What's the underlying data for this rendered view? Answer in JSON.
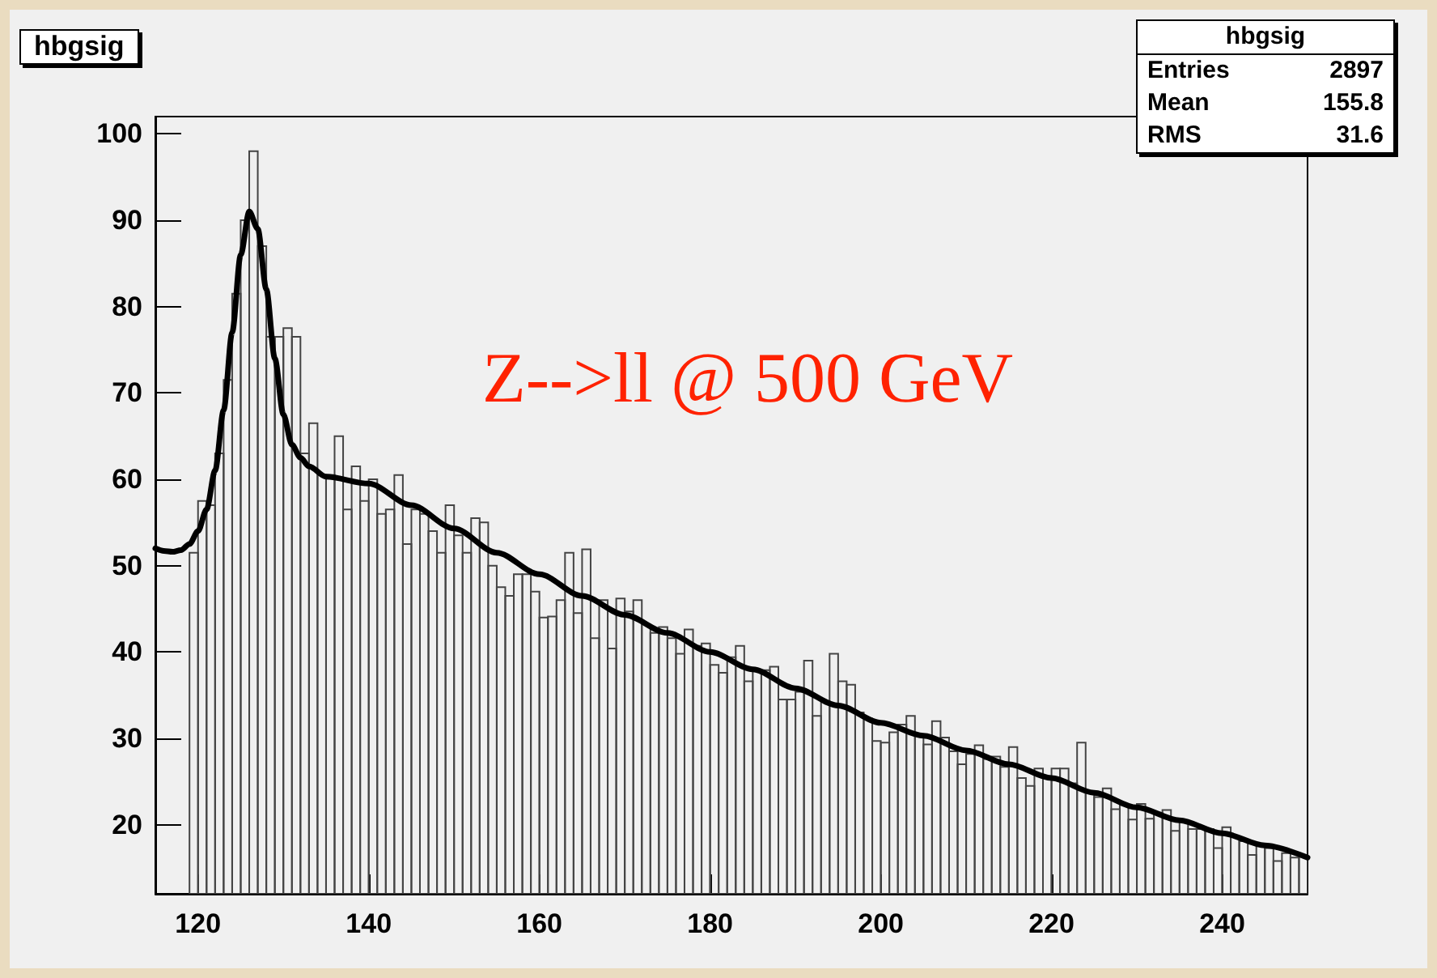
{
  "chart_data": {
    "type": "histogram",
    "title": "hbgsig",
    "bins": [
      119,
      120,
      121,
      122,
      123,
      124,
      125,
      126,
      127,
      128,
      129,
      130,
      131,
      132,
      133,
      134,
      135,
      136,
      137,
      138,
      139,
      140,
      141,
      142,
      143,
      144,
      145,
      146,
      147,
      148,
      149,
      150,
      151,
      152,
      153,
      154,
      155,
      156,
      157,
      158,
      159,
      160,
      161,
      162,
      163,
      164,
      165,
      166,
      167,
      168,
      169,
      170,
      171,
      172,
      173,
      174,
      175,
      176,
      177,
      178,
      179,
      180,
      181,
      182,
      183,
      184,
      185,
      186,
      187,
      188,
      189,
      190,
      191,
      192,
      193,
      194,
      195,
      196,
      197,
      198,
      199,
      200,
      201,
      202,
      203,
      204,
      205,
      206,
      207,
      208,
      209,
      210,
      211,
      212,
      213,
      214,
      215,
      216,
      217,
      218,
      219,
      220,
      221,
      222,
      223,
      224,
      225,
      226,
      227,
      228,
      229,
      230,
      231,
      232,
      233,
      234,
      235,
      236,
      237,
      238,
      239,
      240,
      241,
      242,
      243,
      244,
      245,
      246,
      247,
      248,
      249,
      250
    ],
    "values": [
      51.5,
      57.5,
      57,
      63,
      71.5,
      81.5,
      90,
      98,
      87,
      76.5,
      76.5,
      77.5,
      76.5,
      63,
      66.5,
      60.5,
      60.5,
      65,
      56.5,
      61.5,
      57.5,
      60,
      56,
      56.5,
      60.5,
      52.5,
      56.5,
      56,
      54,
      51.5,
      57,
      53.5,
      51.5,
      55.5,
      55,
      50,
      47.5,
      46.5,
      49,
      49,
      47,
      44,
      44.1,
      46,
      51.5,
      44.5,
      51.9,
      41.6,
      46,
      40.4,
      46.2,
      44.7,
      46,
      43.2,
      42.2,
      42.9,
      41.6,
      39.8,
      42.6,
      40.7,
      41,
      38.5,
      37.6,
      39.4,
      40.7,
      36.6,
      37.9,
      37.9,
      38.3,
      34.5,
      34.5,
      35.4,
      39,
      32.6,
      34.2,
      39.8,
      36.6,
      36.2,
      33,
      32.3,
      29.7,
      29.5,
      30.7,
      31.6,
      32.6,
      30.4,
      29.3,
      32,
      30.1,
      28.5,
      27,
      28.2,
      29.2,
      27.6,
      27.9,
      26.7,
      29,
      25.4,
      24.5,
      26.5,
      25.4,
      26.5,
      26.5,
      24.8,
      29.5,
      23.9,
      23.2,
      24.2,
      21.8,
      22.3,
      20.6,
      22.4,
      20.7,
      21.4,
      21.7,
      19.3,
      20.4,
      19.5,
      19.5,
      19.5,
      17.3,
      19.7,
      18.6,
      18.1,
      16.5,
      17.6,
      17.3,
      15.8,
      16.7,
      16.2,
      16.3
    ],
    "color": "#444444",
    "series": [
      {
        "type": "line",
        "color": "#000000",
        "x": [
          115,
          116,
          117,
          118,
          119,
          120,
          121,
          122,
          123,
          124,
          125,
          126,
          127,
          128,
          129,
          130,
          131,
          132,
          133,
          135,
          140,
          145,
          150,
          155,
          160,
          165,
          170,
          175,
          180,
          185,
          190,
          195,
          200,
          205,
          210,
          215,
          220,
          225,
          230,
          235,
          240,
          245,
          250
        ],
        "values": [
          52,
          51.7,
          51.6,
          51.8,
          52.5,
          54,
          56.5,
          61,
          68,
          77,
          86,
          91,
          89,
          82,
          74,
          67.5,
          64,
          62.5,
          61.5,
          60.3,
          59.5,
          57,
          54.3,
          51.5,
          49,
          46.5,
          44.3,
          42.2,
          40,
          38,
          35.8,
          33.8,
          31.8,
          30.3,
          28.6,
          27,
          25.4,
          23.7,
          22,
          20.5,
          19,
          17.6,
          16.2
        ]
      }
    ],
    "xlim": [
      115,
      250
    ],
    "xticks": [
      120,
      140,
      160,
      180,
      200,
      220,
      240
    ],
    "ylim": [
      12,
      102
    ],
    "yticks": [
      20,
      30,
      40,
      50,
      60,
      70,
      80,
      90,
      100
    ],
    "annotations": [
      "hbgsig",
      "Entries",
      "2897",
      "Mean",
      "155.8",
      "RMS",
      "31.6",
      "Z-->ll @ 500 GeV"
    ],
    "grid": false,
    "marker": "none",
    "line_style": "solid"
  }
}
